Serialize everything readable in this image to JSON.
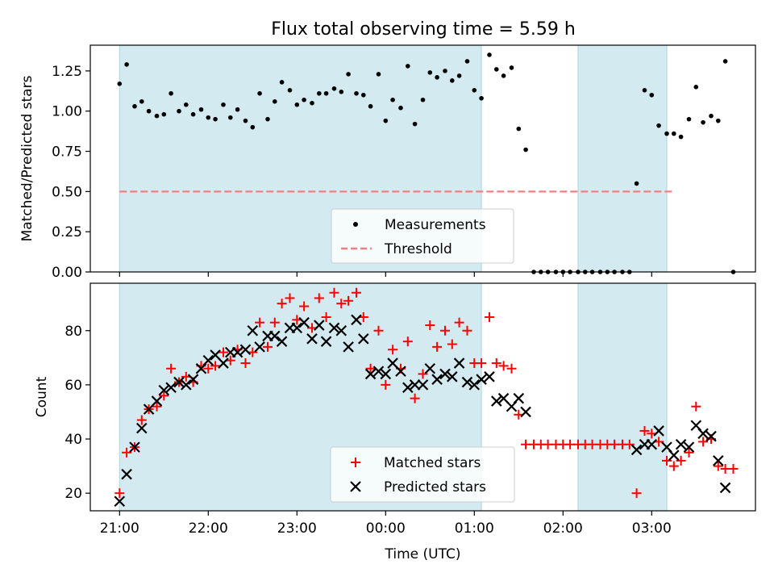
{
  "title": "Flux total observing time = 5.59 h",
  "colors": {
    "shade": "#d3eaf0",
    "shade_edge": "#a9d6df",
    "measurement": "#000000",
    "threshold": "#f08080",
    "matched": "#ff0000",
    "predicted": "#000000",
    "axis": "#000000"
  },
  "chart_data": [
    {
      "type": "scatter",
      "panel": "top",
      "title": "Flux total observing time = 5.59 h",
      "ylabel": "Matched/Predicted stars",
      "xlabel": "",
      "ylim": [
        0,
        1.41
      ],
      "xlim": [
        -3.33,
        4.17
      ],
      "yticks": [
        0.0,
        0.25,
        0.5,
        0.75,
        1.0,
        1.25
      ],
      "yticklabels": [
        "0.00",
        "0.25",
        "0.50",
        "0.75",
        "1.00",
        "1.25"
      ],
      "xticks": [
        -3,
        -2,
        -1,
        0,
        1,
        2,
        3
      ],
      "show_xticklabels": false,
      "shaded_intervals": [
        [
          -3.0,
          1.08
        ],
        [
          2.17,
          3.17
        ]
      ],
      "legend": {
        "position": "lower center",
        "entries": [
          "Measurements",
          "Threshold"
        ]
      },
      "threshold": {
        "name": "Threshold",
        "value": 0.5,
        "x_range": [
          -3.0,
          3.25
        ]
      },
      "series": [
        {
          "name": "Measurements",
          "marker": "dot",
          "points": [
            [
              -3.0,
              1.17
            ],
            [
              -2.92,
              1.29
            ],
            [
              -2.83,
              1.03
            ],
            [
              -2.75,
              1.06
            ],
            [
              -2.67,
              1.0
            ],
            [
              -2.58,
              0.97
            ],
            [
              -2.5,
              0.98
            ],
            [
              -2.42,
              1.11
            ],
            [
              -2.33,
              1.0
            ],
            [
              -2.25,
              1.04
            ],
            [
              -2.17,
              0.98
            ],
            [
              -2.08,
              1.01
            ],
            [
              -2.0,
              0.96
            ],
            [
              -1.92,
              0.95
            ],
            [
              -1.83,
              1.04
            ],
            [
              -1.75,
              0.96
            ],
            [
              -1.67,
              1.01
            ],
            [
              -1.58,
              0.94
            ],
            [
              -1.5,
              0.9
            ],
            [
              -1.42,
              1.11
            ],
            [
              -1.33,
              0.95
            ],
            [
              -1.25,
              1.06
            ],
            [
              -1.17,
              1.18
            ],
            [
              -1.08,
              1.13
            ],
            [
              -1.0,
              1.04
            ],
            [
              -0.92,
              1.07
            ],
            [
              -0.83,
              1.05
            ],
            [
              -0.75,
              1.11
            ],
            [
              -0.67,
              1.11
            ],
            [
              -0.58,
              1.14
            ],
            [
              -0.5,
              1.12
            ],
            [
              -0.42,
              1.23
            ],
            [
              -0.33,
              1.11
            ],
            [
              -0.25,
              1.1
            ],
            [
              -0.17,
              1.03
            ],
            [
              -0.08,
              1.23
            ],
            [
              0.0,
              0.94
            ],
            [
              0.08,
              1.07
            ],
            [
              0.17,
              1.02
            ],
            [
              0.25,
              1.28
            ],
            [
              0.33,
              0.92
            ],
            [
              0.42,
              1.07
            ],
            [
              0.5,
              1.24
            ],
            [
              0.58,
              1.21
            ],
            [
              0.67,
              1.25
            ],
            [
              0.75,
              1.19
            ],
            [
              0.83,
              1.22
            ],
            [
              0.92,
              1.31
            ],
            [
              1.0,
              1.13
            ],
            [
              1.08,
              1.08
            ],
            [
              1.17,
              1.35
            ],
            [
              1.25,
              1.26
            ],
            [
              1.33,
              1.22
            ],
            [
              1.42,
              1.27
            ],
            [
              1.5,
              0.89
            ],
            [
              1.58,
              0.76
            ],
            [
              1.67,
              0.0
            ],
            [
              1.75,
              0.0
            ],
            [
              1.83,
              0.0
            ],
            [
              1.92,
              0.0
            ],
            [
              2.0,
              0.0
            ],
            [
              2.08,
              0.0
            ],
            [
              2.17,
              0.0
            ],
            [
              2.25,
              0.0
            ],
            [
              2.33,
              0.0
            ],
            [
              2.42,
              0.0
            ],
            [
              2.5,
              0.0
            ],
            [
              2.58,
              0.0
            ],
            [
              2.67,
              0.0
            ],
            [
              2.75,
              0.0
            ],
            [
              2.83,
              0.55
            ],
            [
              2.92,
              1.13
            ],
            [
              3.0,
              1.1
            ],
            [
              3.08,
              0.91
            ],
            [
              3.17,
              0.86
            ],
            [
              3.25,
              0.86
            ],
            [
              3.33,
              0.84
            ],
            [
              3.42,
              0.95
            ],
            [
              3.5,
              1.15
            ],
            [
              3.58,
              0.93
            ],
            [
              3.67,
              0.97
            ],
            [
              3.75,
              0.94
            ],
            [
              3.83,
              1.31
            ],
            [
              3.92,
              0.0
            ]
          ]
        }
      ]
    },
    {
      "type": "scatter",
      "panel": "bottom",
      "ylabel": "Count",
      "xlabel": "Time (UTC)",
      "ylim": [
        13.5,
        97.5
      ],
      "xlim": [
        -3.33,
        4.17
      ],
      "yticks": [
        20,
        40,
        60,
        80
      ],
      "yticklabels": [
        "20",
        "40",
        "60",
        "80"
      ],
      "xticks": [
        -3,
        -2,
        -1,
        0,
        1,
        2,
        3
      ],
      "xticklabels": [
        "21:00",
        "22:00",
        "23:00",
        "00:00",
        "01:00",
        "02:00",
        "03:00"
      ],
      "shaded_intervals": [
        [
          -3.0,
          1.08
        ],
        [
          2.17,
          3.17
        ]
      ],
      "legend": {
        "position": "lower center",
        "entries": [
          "Matched stars",
          "Predicted stars"
        ]
      },
      "series": [
        {
          "name": "Matched stars",
          "marker": "plus",
          "points": [
            [
              -3.0,
              20
            ],
            [
              -2.92,
              35
            ],
            [
              -2.83,
              37
            ],
            [
              -2.75,
              47
            ],
            [
              -2.67,
              51
            ],
            [
              -2.58,
              52
            ],
            [
              -2.5,
              56
            ],
            [
              -2.42,
              66
            ],
            [
              -2.33,
              61
            ],
            [
              -2.25,
              63
            ],
            [
              -2.17,
              61
            ],
            [
              -2.08,
              67
            ],
            [
              -2.0,
              66
            ],
            [
              -1.92,
              67
            ],
            [
              -1.83,
              72
            ],
            [
              -1.75,
              69
            ],
            [
              -1.67,
              73
            ],
            [
              -1.58,
              68
            ],
            [
              -1.5,
              72
            ],
            [
              -1.42,
              83
            ],
            [
              -1.33,
              74
            ],
            [
              -1.25,
              83
            ],
            [
              -1.17,
              90
            ],
            [
              -1.08,
              92
            ],
            [
              -1.0,
              84
            ],
            [
              -0.92,
              89
            ],
            [
              -0.83,
              81
            ],
            [
              -0.75,
              92
            ],
            [
              -0.67,
              85
            ],
            [
              -0.58,
              94
            ],
            [
              -0.5,
              90
            ],
            [
              -0.42,
              91
            ],
            [
              -0.33,
              94
            ],
            [
              -0.25,
              85
            ],
            [
              -0.17,
              66
            ],
            [
              -0.08,
              80
            ],
            [
              0.0,
              60
            ],
            [
              0.08,
              73
            ],
            [
              0.17,
              66
            ],
            [
              0.25,
              76
            ],
            [
              0.33,
              55
            ],
            [
              0.42,
              64
            ],
            [
              0.5,
              82
            ],
            [
              0.58,
              74
            ],
            [
              0.67,
              80
            ],
            [
              0.75,
              75
            ],
            [
              0.83,
              83
            ],
            [
              0.92,
              80
            ],
            [
              1.0,
              68
            ],
            [
              1.08,
              68
            ],
            [
              1.17,
              85
            ],
            [
              1.25,
              68
            ],
            [
              1.33,
              67
            ],
            [
              1.42,
              66
            ],
            [
              1.5,
              49
            ],
            [
              1.58,
              38
            ],
            [
              1.67,
              38
            ],
            [
              1.75,
              38
            ],
            [
              1.83,
              38
            ],
            [
              1.92,
              38
            ],
            [
              2.0,
              38
            ],
            [
              2.08,
              38
            ],
            [
              2.17,
              38
            ],
            [
              2.25,
              38
            ],
            [
              2.33,
              38
            ],
            [
              2.42,
              38
            ],
            [
              2.5,
              38
            ],
            [
              2.58,
              38
            ],
            [
              2.67,
              38
            ],
            [
              2.75,
              38
            ],
            [
              2.83,
              20
            ],
            [
              2.92,
              43
            ],
            [
              3.0,
              42
            ],
            [
              3.08,
              39
            ],
            [
              3.17,
              32
            ],
            [
              3.25,
              30
            ],
            [
              3.33,
              32
            ],
            [
              3.42,
              35
            ],
            [
              3.5,
              52
            ],
            [
              3.58,
              39
            ],
            [
              3.67,
              40
            ],
            [
              3.75,
              30
            ],
            [
              3.83,
              29
            ],
            [
              3.92,
              29
            ]
          ]
        },
        {
          "name": "Predicted stars",
          "marker": "x",
          "points": [
            [
              -3.0,
              17
            ],
            [
              -2.92,
              27
            ],
            [
              -2.83,
              37
            ],
            [
              -2.75,
              44
            ],
            [
              -2.67,
              51
            ],
            [
              -2.58,
              54
            ],
            [
              -2.5,
              58
            ],
            [
              -2.42,
              59
            ],
            [
              -2.33,
              61
            ],
            [
              -2.25,
              60
            ],
            [
              -2.17,
              62
            ],
            [
              -2.08,
              66
            ],
            [
              -2.0,
              69
            ],
            [
              -1.92,
              71
            ],
            [
              -1.83,
              68
            ],
            [
              -1.75,
              72
            ],
            [
              -1.67,
              72
            ],
            [
              -1.58,
              73
            ],
            [
              -1.5,
              80
            ],
            [
              -1.42,
              74
            ],
            [
              -1.33,
              78
            ],
            [
              -1.25,
              78
            ],
            [
              -1.17,
              76
            ],
            [
              -1.08,
              81
            ],
            [
              -1.0,
              81
            ],
            [
              -0.92,
              83
            ],
            [
              -0.83,
              77
            ],
            [
              -0.75,
              82
            ],
            [
              -0.67,
              76
            ],
            [
              -0.58,
              81
            ],
            [
              -0.5,
              80
            ],
            [
              -0.42,
              74
            ],
            [
              -0.33,
              84
            ],
            [
              -0.25,
              77
            ],
            [
              -0.17,
              64
            ],
            [
              -0.08,
              65
            ],
            [
              0.0,
              64
            ],
            [
              0.08,
              68
            ],
            [
              0.17,
              65
            ],
            [
              0.25,
              59
            ],
            [
              0.33,
              60
            ],
            [
              0.42,
              60
            ],
            [
              0.5,
              66
            ],
            [
              0.58,
              62
            ],
            [
              0.67,
              64
            ],
            [
              0.75,
              63
            ],
            [
              0.83,
              68
            ],
            [
              0.92,
              61
            ],
            [
              1.0,
              60
            ],
            [
              1.08,
              62
            ],
            [
              1.17,
              63
            ],
            [
              1.25,
              54
            ],
            [
              1.33,
              55
            ],
            [
              1.42,
              52
            ],
            [
              1.5,
              55
            ],
            [
              1.58,
              50
            ],
            [
              2.83,
              36
            ],
            [
              2.92,
              38
            ],
            [
              3.0,
              38
            ],
            [
              3.08,
              43
            ],
            [
              3.17,
              37
            ],
            [
              3.25,
              34
            ],
            [
              3.33,
              38
            ],
            [
              3.42,
              37
            ],
            [
              3.5,
              45
            ],
            [
              3.58,
              42
            ],
            [
              3.67,
              41
            ],
            [
              3.75,
              32
            ],
            [
              3.83,
              22
            ]
          ]
        }
      ]
    }
  ]
}
